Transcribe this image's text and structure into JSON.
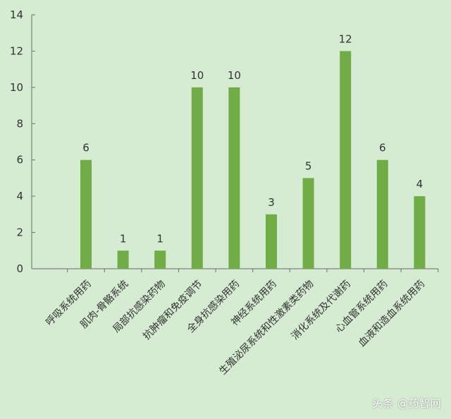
{
  "chart_data": {
    "type": "bar",
    "title": "",
    "xlabel": "",
    "ylabel": "",
    "ylim": [
      0,
      14
    ],
    "yticks": [
      0,
      2,
      4,
      6,
      8,
      10,
      12,
      14
    ],
    "categories": [
      "呼吸系统用药",
      "肌肉-骨骼系统",
      "局部抗感染药物",
      "抗肿瘤和免疫调节",
      "全身抗感染用药",
      "神经系统用药",
      "生殖泌尿系统和性激素类药物",
      "消化系统及代谢药",
      "心血管系统用药",
      "血液和造血系统用药"
    ],
    "values": [
      6,
      1,
      1,
      10,
      10,
      3,
      5,
      12,
      6,
      4
    ],
    "data_labels": true,
    "grid": false,
    "legend": "none",
    "colors": {
      "bar": "#70ad47",
      "background": "#d5ebd2",
      "axis": "#6d6d6d",
      "text": "#333333"
    }
  },
  "watermark": "头条 @药智网"
}
